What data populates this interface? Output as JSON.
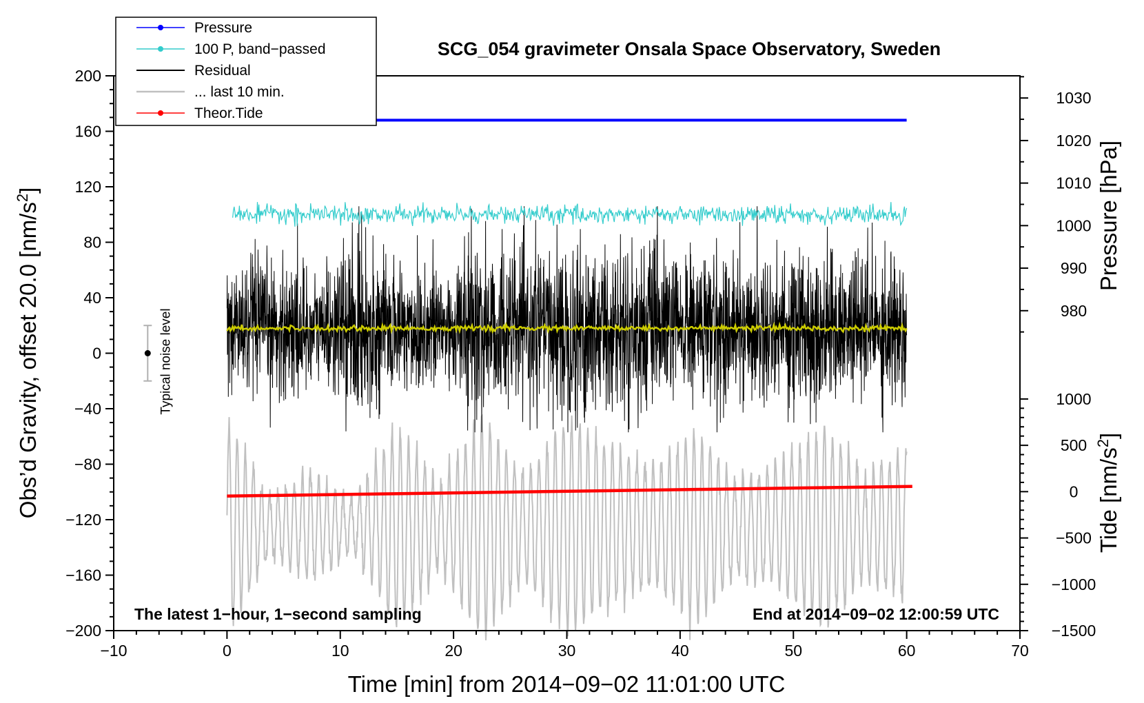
{
  "chart_data": {
    "type": "line",
    "title": "SCG_054 gravimeter Onsala Space Observatory, Sweden",
    "xlabel": "Time [min] from 2014−09−02 11:01:00 UTC",
    "ylabel_left": "Obs’d Gravity, offset 20.0 [nm/s",
    "ylabel_left_sup": "2",
    "ylabel_left_end": "]",
    "ylabel_pressure": "Pressure [hPa]",
    "ylabel_tide": "Tide [nm/s",
    "ylabel_tide_sup": "2",
    "ylabel_tide_end": "]",
    "xlim": [
      -10,
      70
    ],
    "ylim": [
      -200,
      200
    ],
    "x_ticks": [
      -10,
      0,
      10,
      20,
      30,
      40,
      50,
      60,
      70
    ],
    "x_tick_labels": [
      "−10",
      "0",
      "10",
      "20",
      "30",
      "40",
      "50",
      "60",
      "70"
    ],
    "y_ticks": [
      -200,
      -160,
      -120,
      -80,
      -40,
      0,
      40,
      80,
      120,
      160,
      200
    ],
    "y_tick_labels": [
      "−200",
      "−160",
      "−120",
      "−80",
      "−40",
      "0",
      "40",
      "80",
      "120",
      "160",
      "200"
    ],
    "pressure_axis": {
      "ticks": [
        980,
        990,
        1000,
        1010,
        1020,
        1030
      ],
      "tick_labels": [
        "980",
        "990",
        "1000",
        "1010",
        "1020",
        "1030"
      ],
      "map": {
        "value_a": 1000,
        "gravity_a": 92,
        "value_b": 1030,
        "gravity_b": 184
      }
    },
    "tide_axis": {
      "ticks": [
        -1500,
        -1000,
        -500,
        0,
        500,
        1000
      ],
      "tick_labels": [
        "−1500",
        "−1000",
        "−500",
        "0",
        "500",
        "1000"
      ],
      "map": {
        "value_a": -1500,
        "gravity_a": -200,
        "value_b": 1000,
        "gravity_b": -33
      }
    },
    "series": [
      {
        "name": "Pressure",
        "color": "#0000ff",
        "x": [
          0,
          60
        ],
        "y": [
          168,
          168
        ]
      },
      {
        "name": "100 P, band−passed",
        "color": "#33cccc",
        "x_range": [
          0.5,
          60
        ],
        "center": 100,
        "amplitude": 4
      },
      {
        "name": "Residual",
        "color": "#000000",
        "x_range": [
          0,
          60
        ],
        "center": 18,
        "amplitude_range": [
          15,
          85
        ]
      },
      {
        "name": "... last 10 min.",
        "color": "#c0c0c0",
        "x_range": [
          0,
          60
        ],
        "center": -125,
        "amplitude_range": [
          10,
          90
        ]
      },
      {
        "name": "Theor.Tide",
        "color": "#ff0000",
        "x": [
          0,
          60.5
        ],
        "y": [
          -103,
          -96
        ]
      },
      {
        "name": "Smoothed residual",
        "color": "#cccc00",
        "x_range": [
          0,
          60
        ],
        "center": 18,
        "amplitude": 1.5
      }
    ],
    "legend": [
      {
        "label": "Pressure",
        "color": "#0000ff",
        "marker": true,
        "width": 1.5
      },
      {
        "label": "100 P, band−passed",
        "color": "#33cccc",
        "marker": true,
        "width": 1.5
      },
      {
        "label": "Residual",
        "color": "#000000",
        "marker": false,
        "width": 2
      },
      {
        "label": "... last 10 min.",
        "color": "#c0c0c0",
        "marker": false,
        "width": 2.5
      },
      {
        "label": "Theor.Tide",
        "color": "#ff0000",
        "marker": true,
        "width": 1.5
      }
    ],
    "noise_level": {
      "label": "Typical noise level",
      "x": -7,
      "center": 0,
      "low": -20,
      "high": 20
    },
    "annotations": {
      "left_note": "The latest 1−hour, 1−second sampling",
      "right_note": "End at 2014−09−02 12:00:59 UTC"
    },
    "grid": false,
    "legend_position": "top-left"
  }
}
